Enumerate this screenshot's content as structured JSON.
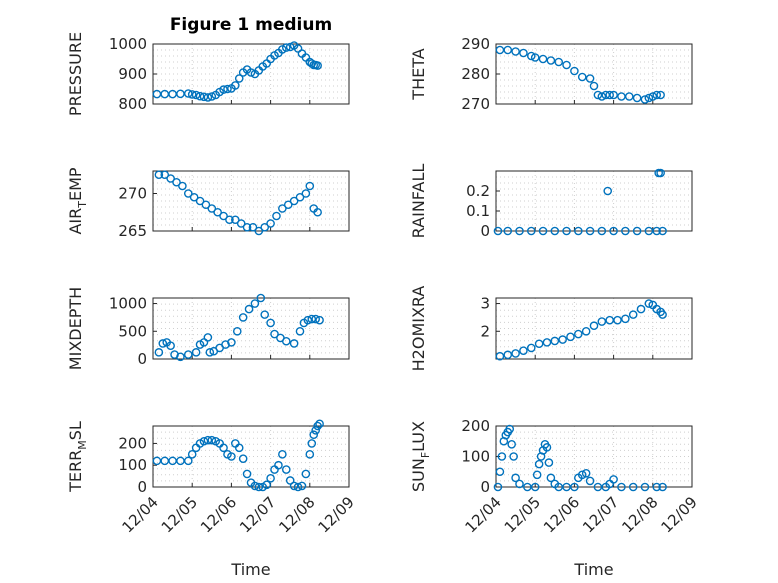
{
  "figure": {
    "title": "Figure 1 medium",
    "xlabel": "Time",
    "x_ticks": [
      "12/04",
      "12/05",
      "12/06",
      "12/07",
      "12/08",
      "12/09"
    ],
    "marker_color": "#0072BD",
    "marker": "open-circle"
  },
  "chart_data": [
    {
      "type": "scatter",
      "ylabel": "PRESSURE",
      "ylabel_sub": "",
      "ylabel_tail": "",
      "xlim": [
        "12/04",
        "12/09"
      ],
      "ylim": [
        800,
        1000
      ],
      "yticks": [
        "800",
        "900",
        "1000"
      ],
      "grid": true,
      "x": [
        0.1,
        0.3,
        0.5,
        0.7,
        0.9,
        1.0,
        1.1,
        1.2,
        1.3,
        1.4,
        1.5,
        1.6,
        1.7,
        1.8,
        1.9,
        2.0,
        2.1,
        2.2,
        2.3,
        2.4,
        2.5,
        2.6,
        2.7,
        2.8,
        2.9,
        3.0,
        3.1,
        3.2,
        3.3,
        3.4,
        3.5,
        3.6,
        3.7,
        3.8,
        3.9,
        4.0,
        4.05,
        4.1,
        4.15,
        4.2
      ],
      "y": [
        833,
        833,
        833,
        834,
        835,
        832,
        830,
        826,
        824,
        822,
        825,
        830,
        840,
        848,
        850,
        852,
        862,
        885,
        905,
        915,
        905,
        900,
        912,
        925,
        935,
        950,
        962,
        970,
        982,
        988,
        990,
        995,
        985,
        968,
        955,
        940,
        935,
        930,
        930,
        928
      ]
    },
    {
      "type": "scatter",
      "ylabel": "THETA",
      "ylabel_sub": "",
      "ylabel_tail": "",
      "xlim": [
        "12/04",
        "12/09"
      ],
      "ylim": [
        270,
        290
      ],
      "yticks": [
        "270",
        "280",
        "290"
      ],
      "grid": true,
      "x": [
        0.1,
        0.3,
        0.5,
        0.7,
        0.9,
        1.0,
        1.2,
        1.4,
        1.6,
        1.8,
        2.0,
        2.2,
        2.4,
        2.5,
        2.6,
        2.7,
        2.8,
        2.9,
        3.0,
        3.2,
        3.4,
        3.6,
        3.8,
        3.9,
        4.0,
        4.1,
        4.2
      ],
      "y": [
        288,
        288,
        287.5,
        287,
        286,
        285.5,
        285,
        284.5,
        284,
        283,
        281,
        279,
        278.5,
        276,
        273,
        272.5,
        273,
        273,
        273,
        272.5,
        272.5,
        272,
        271.5,
        272,
        272.5,
        273,
        273
      ]
    },
    {
      "type": "scatter",
      "ylabel": "AIR",
      "ylabel_sub": "T",
      "ylabel_tail": "EMP",
      "xlim": [
        "12/04",
        "12/09"
      ],
      "ylim": [
        265,
        273
      ],
      "yticks": [
        "265",
        "270"
      ],
      "grid": true,
      "x": [
        0.15,
        0.3,
        0.45,
        0.6,
        0.75,
        0.9,
        1.05,
        1.2,
        1.35,
        1.5,
        1.65,
        1.8,
        1.95,
        2.1,
        2.25,
        2.4,
        2.55,
        2.7,
        2.85,
        3.0,
        3.15,
        3.3,
        3.45,
        3.6,
        3.75,
        3.9,
        4.0,
        4.1,
        4.2
      ],
      "y": [
        272.5,
        272.5,
        272,
        271.5,
        271,
        270,
        269.5,
        269,
        268.5,
        268,
        267.5,
        267,
        266.5,
        266.5,
        266,
        265.5,
        265.5,
        265,
        265.5,
        266,
        267,
        268,
        268.5,
        269,
        269.5,
        270,
        271,
        268,
        267.5
      ]
    },
    {
      "type": "scatter",
      "ylabel": "RAINFALL",
      "ylabel_sub": "",
      "ylabel_tail": "",
      "xlim": [
        "12/04",
        "12/09"
      ],
      "ylim": [
        0,
        0.3
      ],
      "yticks": [
        "0",
        "0.1",
        "0.2"
      ],
      "grid": true,
      "x": [
        0.05,
        0.3,
        0.6,
        0.9,
        1.2,
        1.5,
        1.8,
        2.1,
        2.4,
        2.7,
        2.85,
        3.0,
        3.3,
        3.6,
        3.9,
        4.1,
        4.15,
        4.2,
        4.25
      ],
      "y": [
        0,
        0,
        0,
        0,
        0,
        0,
        0,
        0,
        0,
        0,
        0.2,
        0,
        0,
        0,
        0,
        0,
        0.29,
        0.29,
        0
      ]
    },
    {
      "type": "scatter",
      "ylabel": "MIXDEPTH",
      "ylabel_sub": "",
      "ylabel_tail": "",
      "xlim": [
        "12/04",
        "12/09"
      ],
      "ylim": [
        0,
        1100
      ],
      "yticks": [
        "0",
        "500",
        "1000"
      ],
      "grid": true,
      "x": [
        0.15,
        0.25,
        0.35,
        0.45,
        0.55,
        0.7,
        0.9,
        1.1,
        1.2,
        1.3,
        1.4,
        1.45,
        1.55,
        1.7,
        1.85,
        2.0,
        2.15,
        2.3,
        2.45,
        2.6,
        2.75,
        2.85,
        3.0,
        3.1,
        3.25,
        3.4,
        3.6,
        3.75,
        3.85,
        3.95,
        4.05,
        4.15,
        4.25
      ],
      "y": [
        120,
        280,
        300,
        240,
        80,
        40,
        80,
        120,
        260,
        300,
        390,
        120,
        140,
        200,
        260,
        300,
        500,
        750,
        900,
        1000,
        1100,
        800,
        650,
        450,
        380,
        320,
        280,
        500,
        650,
        700,
        720,
        720,
        700
      ]
    },
    {
      "type": "scatter",
      "ylabel": "H2OMIXRA",
      "ylabel_sub": "",
      "ylabel_tail": "",
      "xlim": [
        "12/04",
        "12/09"
      ],
      "ylim": [
        1,
        3.2
      ],
      "yticks": [
        "2",
        "3"
      ],
      "grid": true,
      "x": [
        0.1,
        0.3,
        0.5,
        0.7,
        0.9,
        1.1,
        1.3,
        1.5,
        1.7,
        1.9,
        2.1,
        2.3,
        2.5,
        2.7,
        2.9,
        3.1,
        3.3,
        3.5,
        3.7,
        3.9,
        4.0,
        4.1,
        4.2,
        4.25
      ],
      "y": [
        1.1,
        1.15,
        1.2,
        1.3,
        1.4,
        1.55,
        1.6,
        1.65,
        1.7,
        1.8,
        1.9,
        2.0,
        2.2,
        2.35,
        2.4,
        2.4,
        2.45,
        2.6,
        2.8,
        3.0,
        2.95,
        2.8,
        2.7,
        2.6
      ]
    },
    {
      "type": "scatter",
      "ylabel": "TERR",
      "ylabel_sub": "M",
      "ylabel_tail": "SL",
      "xlim": [
        "12/04",
        "12/09"
      ],
      "ylim": [
        0,
        280
      ],
      "yticks": [
        "0",
        "100",
        "200"
      ],
      "grid": true,
      "x": [
        0.1,
        0.3,
        0.5,
        0.7,
        0.9,
        1.0,
        1.1,
        1.2,
        1.3,
        1.4,
        1.5,
        1.6,
        1.7,
        1.8,
        1.9,
        2.0,
        2.1,
        2.2,
        2.3,
        2.4,
        2.5,
        2.6,
        2.7,
        2.8,
        2.9,
        3.0,
        3.1,
        3.2,
        3.3,
        3.4,
        3.5,
        3.6,
        3.7,
        3.8,
        3.9,
        4.0,
        4.05,
        4.1,
        4.15,
        4.2,
        4.25
      ],
      "y": [
        120,
        120,
        120,
        120,
        120,
        150,
        180,
        200,
        210,
        215,
        215,
        210,
        200,
        180,
        150,
        140,
        200,
        180,
        130,
        60,
        20,
        5,
        0,
        0,
        10,
        40,
        80,
        100,
        150,
        80,
        30,
        5,
        0,
        5,
        60,
        150,
        200,
        240,
        260,
        280,
        290
      ]
    },
    {
      "type": "scatter",
      "ylabel": "SUN",
      "ylabel_sub": "F",
      "ylabel_tail": "LUX",
      "xlim": [
        "12/04",
        "12/09"
      ],
      "ylim": [
        0,
        200
      ],
      "yticks": [
        "0",
        "100",
        "200"
      ],
      "grid": true,
      "x": [
        0.05,
        0.1,
        0.15,
        0.2,
        0.25,
        0.3,
        0.35,
        0.4,
        0.45,
        0.5,
        0.6,
        0.8,
        1.0,
        1.05,
        1.1,
        1.15,
        1.2,
        1.25,
        1.3,
        1.35,
        1.4,
        1.5,
        1.6,
        1.8,
        2.0,
        2.1,
        2.2,
        2.3,
        2.4,
        2.6,
        2.8,
        2.9,
        3.0,
        3.2,
        3.5,
        3.8,
        4.1,
        4.25
      ],
      "y": [
        0,
        50,
        100,
        150,
        170,
        180,
        190,
        140,
        100,
        30,
        10,
        0,
        0,
        40,
        75,
        100,
        120,
        140,
        130,
        80,
        30,
        10,
        0,
        0,
        0,
        30,
        40,
        45,
        20,
        0,
        0,
        10,
        25,
        0,
        0,
        0,
        0,
        0
      ]
    }
  ]
}
